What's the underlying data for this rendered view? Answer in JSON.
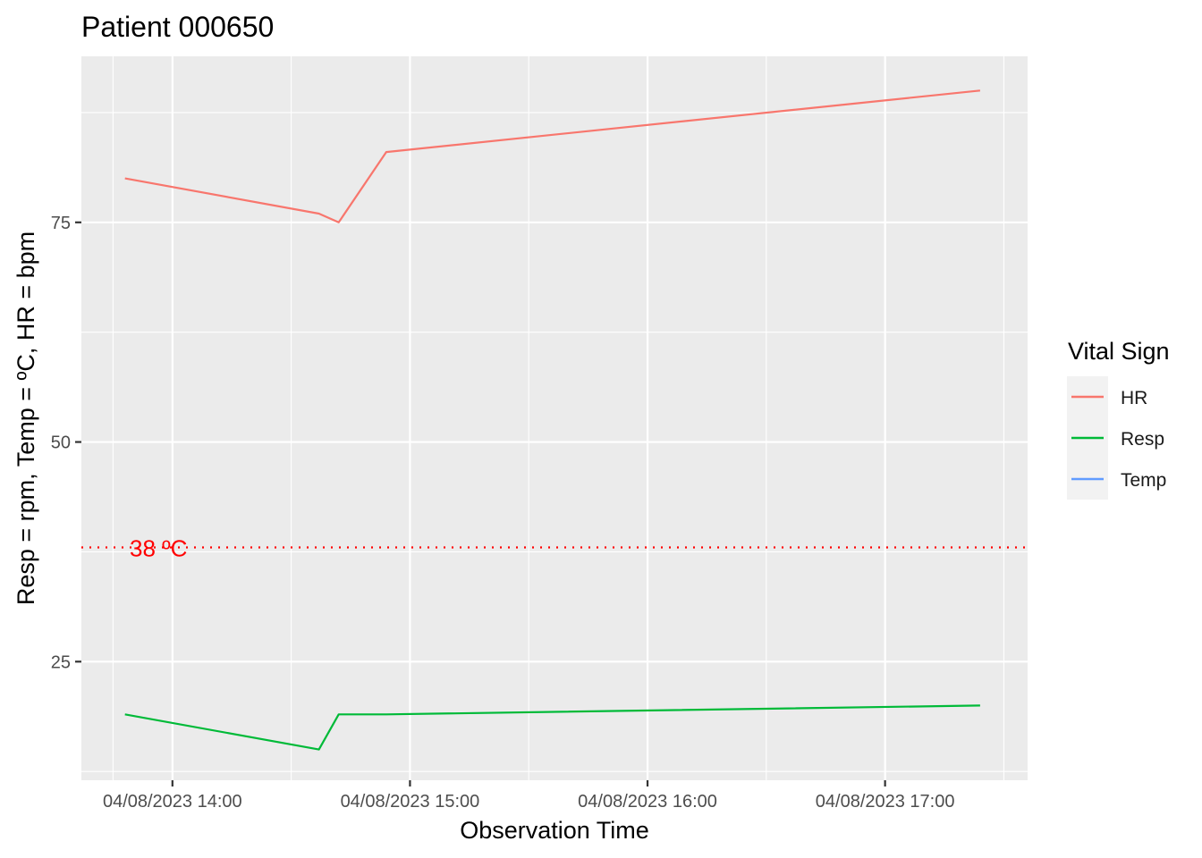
{
  "chart_data": {
    "type": "line",
    "title": "Patient 000650",
    "xlabel": "Observation Time",
    "ylabel": "Resp = rpm,  Temp = ºC,  HR = bpm",
    "x_ticks": [
      {
        "time": "13:45",
        "label": ""
      },
      {
        "time": "14:00",
        "label": "04/08/2023 14:00"
      },
      {
        "time": "14:30",
        "label": ""
      },
      {
        "time": "15:00",
        "label": "04/08/2023 15:00"
      },
      {
        "time": "15:30",
        "label": ""
      },
      {
        "time": "16:00",
        "label": "04/08/2023 16:00"
      },
      {
        "time": "16:30",
        "label": ""
      },
      {
        "time": "17:00",
        "label": "04/08/2023 17:00"
      },
      {
        "time": "17:30",
        "label": ""
      }
    ],
    "xlim": [
      "13:37",
      "17:36"
    ],
    "ylim": [
      11.5,
      93.9
    ],
    "y_major_ticks": [
      25,
      50,
      75
    ],
    "y_minor_ticks": [
      12.5,
      37.5,
      62.5,
      87.5
    ],
    "grid": true,
    "legend": {
      "title": "Vital Sign",
      "position": "right",
      "entries": [
        {
          "name": "HR",
          "color": "#F8766D"
        },
        {
          "name": "Resp",
          "color": "#00BA38"
        },
        {
          "name": "Temp",
          "color": "#619CFF"
        }
      ]
    },
    "series": [
      {
        "name": "HR",
        "color": "#F8766D",
        "points": [
          {
            "time": "13:48",
            "value": 80
          },
          {
            "time": "14:37",
            "value": 76
          },
          {
            "time": "14:42",
            "value": 75
          },
          {
            "time": "14:54",
            "value": 83
          },
          {
            "time": "17:24",
            "value": 90
          }
        ]
      },
      {
        "name": "Resp",
        "color": "#00BA38",
        "points": [
          {
            "time": "13:48",
            "value": 19
          },
          {
            "time": "14:37",
            "value": 15
          },
          {
            "time": "14:42",
            "value": 19
          },
          {
            "time": "14:54",
            "value": 19
          },
          {
            "time": "17:24",
            "value": 20
          }
        ]
      }
    ],
    "reference_lines": [
      {
        "value": 38,
        "label": "38 ºC",
        "color": "#FF0000",
        "style": "dotted"
      }
    ]
  }
}
